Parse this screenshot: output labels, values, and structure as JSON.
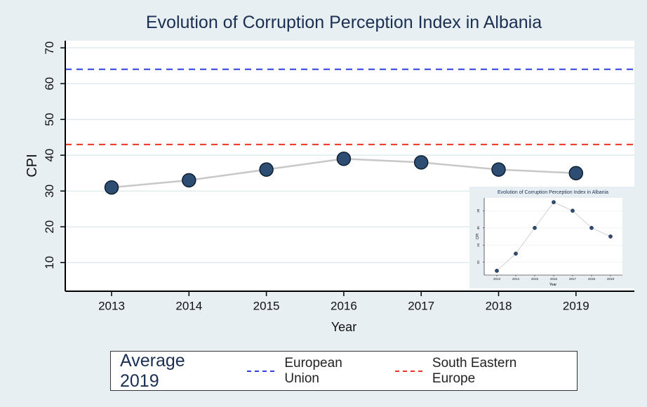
{
  "chart_data": [
    {
      "type": "line",
      "title": "Evolution of Corruption Perception Index in Albania",
      "xlabel": "Year",
      "ylabel": "CPI",
      "x": [
        "2013",
        "2014",
        "2015",
        "2016",
        "2017",
        "2018",
        "2019"
      ],
      "y": [
        31,
        33,
        36,
        39,
        38,
        36,
        35
      ],
      "ylim": [
        2,
        72
      ],
      "yticks": [
        10,
        20,
        30,
        40,
        50,
        60,
        70
      ],
      "grid": true,
      "reference_lines": [
        {
          "name": "European Union",
          "value": 64,
          "color": "#2f3fe0"
        },
        {
          "name": "South Eastern Europe",
          "value": 43,
          "color": "#ee3322"
        }
      ],
      "legend": {
        "title": "Average 2019",
        "position": "bottom"
      },
      "colors": {
        "marker": "#2d4e72",
        "line": "#c8c8c8",
        "background": "#e8eff3",
        "title": "#1a2f52"
      }
    },
    {
      "type": "line",
      "title": "Evolution of Corruption Perception Index in Albania",
      "xlabel": "Year",
      "ylabel": "CPI",
      "x": [
        "2013",
        "2014",
        "2015",
        "2016",
        "2017",
        "2018",
        "2019"
      ],
      "y": [
        31,
        33,
        36,
        39,
        38,
        36,
        35
      ],
      "ylim": [
        30.5,
        39.5
      ],
      "yticks": [
        32,
        34,
        36,
        38
      ],
      "grid": true,
      "position": "inset lower-right"
    }
  ]
}
